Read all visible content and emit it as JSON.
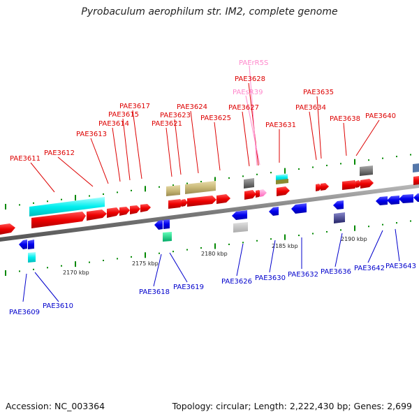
{
  "title": "Pyrobaculum aerophilum str. IM2, complete genome",
  "footer": {
    "accession": "Accession: NC_003364",
    "summary": "Topology: circular; Length: 2,222,430 bp; Genes: 2,699"
  },
  "colors": {
    "forward_gene": "#ff0000",
    "reverse_gene": "#0000ee",
    "forward_label": "#dd0000",
    "reverse_label": "#0000cc",
    "rna_label": "#ff88cc",
    "backbone": "#808080",
    "tick": "#008800",
    "cyan_feature": "#00eeee",
    "olive_feature": "#c8b878",
    "gray_feature": "#777777",
    "teal_feature": "#00dd88",
    "slate_feature": "#444488"
  },
  "scale_labels": [
    "2170 kbp",
    "2175 kbp",
    "2180 kbp",
    "2185 kbp",
    "2190 kbp"
  ],
  "forward_labels": [
    "PAE3611",
    "PAE3612",
    "PAE3613",
    "PAE3614",
    "PAE3615",
    "PAE3617",
    "PAE3621",
    "PAE3623",
    "PAE3624",
    "PAE3625",
    "PAE3627",
    "PAE3628",
    "PAE3631",
    "PAE3634",
    "PAE3635",
    "PAE3638",
    "PAE3640"
  ],
  "rna_labels": [
    "PAErR5S",
    "PAEsR39"
  ],
  "reverse_labels": [
    "PAE3609",
    "PAE3610",
    "PAE3618",
    "PAE3619",
    "PAE3626",
    "PAE3630",
    "PAE3632",
    "PAE3636",
    "PAE3642",
    "PAE3643"
  ]
}
